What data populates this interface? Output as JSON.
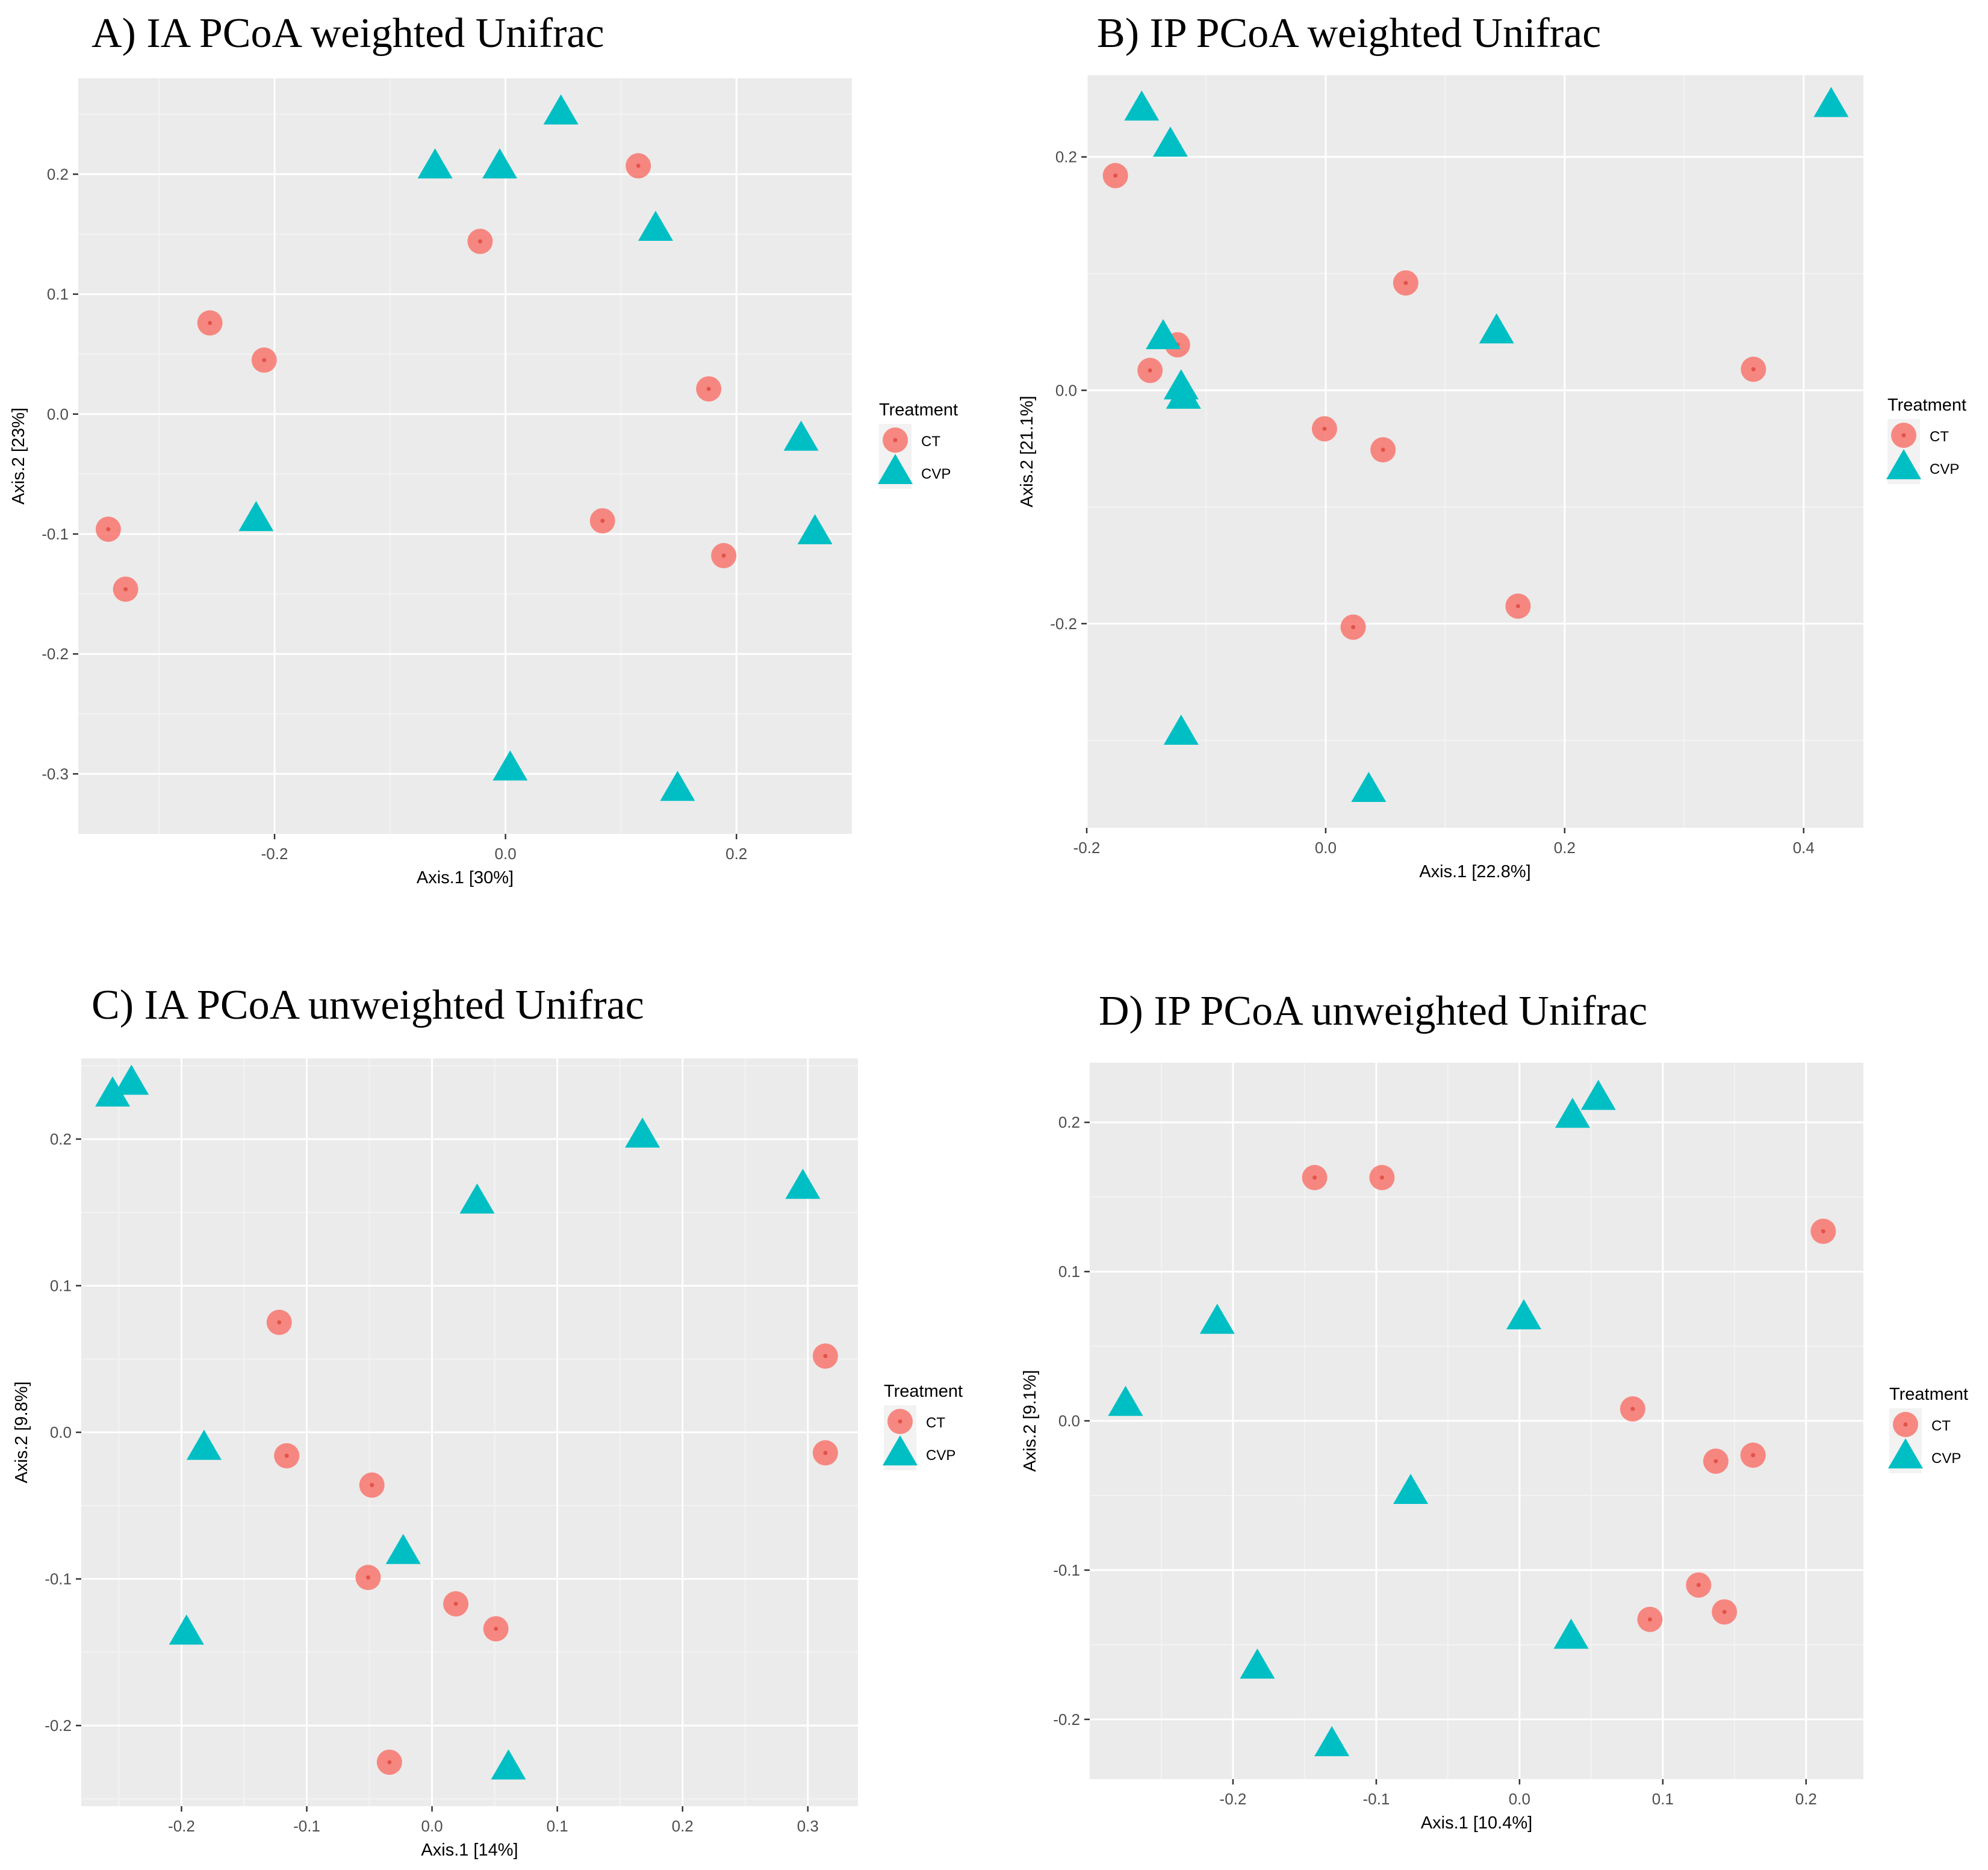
{
  "colors": {
    "panel_bg": "#ebebeb",
    "grid_major": "#ffffff",
    "grid_minor": "#f3f3f3",
    "ct": "#f8766d",
    "cvp": "#00bfc4",
    "ct_center": "#e2534a"
  },
  "chart_data": [
    {
      "type": "scatter",
      "title": "A) IA PCoA weighted Unifrac",
      "xlabel": "Axis.1   [30%]",
      "ylabel": "Axis.2   [23%]",
      "xlim": [
        -0.37,
        0.3
      ],
      "ylim": [
        -0.35,
        0.28
      ],
      "xticks": [
        -0.2,
        0.0,
        0.2
      ],
      "xtick_labels": [
        "-0.2",
        "0.0",
        "0.2"
      ],
      "yticks": [
        -0.3,
        -0.2,
        -0.1,
        0.0,
        0.1,
        0.2
      ],
      "ytick_labels": [
        "-0.3",
        "-0.2",
        "-0.1",
        "0.0",
        "0.1",
        "0.2"
      ],
      "legend": {
        "title": "Treatment",
        "labels": [
          "CT",
          "CVP"
        ],
        "position": "right"
      },
      "series": [
        {
          "name": "CT",
          "marker": "circle",
          "points": [
            [
              -0.344,
              -0.096
            ],
            [
              -0.329,
              -0.146
            ],
            [
              -0.256,
              0.076
            ],
            [
              -0.209,
              0.045
            ],
            [
              -0.022,
              0.144
            ],
            [
              0.084,
              -0.089
            ],
            [
              0.115,
              0.207
            ],
            [
              0.176,
              0.021
            ],
            [
              0.189,
              -0.118
            ]
          ]
        },
        {
          "name": "CVP",
          "marker": "triangle",
          "points": [
            [
              -0.216,
              -0.088
            ],
            [
              -0.061,
              0.206
            ],
            [
              -0.005,
              0.206
            ],
            [
              0.048,
              0.251
            ],
            [
              0.13,
              0.154
            ],
            [
              0.256,
              -0.021
            ],
            [
              0.268,
              -0.099
            ],
            [
              0.004,
              -0.296
            ],
            [
              0.149,
              -0.313
            ]
          ]
        }
      ]
    },
    {
      "type": "scatter",
      "title": "B) IP PCoA weighted Unifrac",
      "xlabel": "Axis.1   [22.8%]",
      "ylabel": "Axis.2   [21.1%]",
      "xlim": [
        -0.2,
        0.45
      ],
      "ylim": [
        -0.375,
        0.27
      ],
      "xticks": [
        -0.2,
        0.0,
        0.2,
        0.4
      ],
      "xtick_labels": [
        "-0.2",
        "0.0",
        "0.2",
        "0.4"
      ],
      "yticks": [
        -0.2,
        0.0,
        0.2
      ],
      "ytick_labels": [
        "-0.2",
        "0.0",
        "0.2"
      ],
      "legend": {
        "title": "Treatment",
        "labels": [
          "CT",
          "CVP"
        ],
        "position": "right"
      },
      "series": [
        {
          "name": "CT",
          "marker": "circle",
          "points": [
            [
              -0.176,
              0.184
            ],
            [
              -0.147,
              0.017
            ],
            [
              -0.124,
              0.039
            ],
            [
              -0.001,
              -0.033
            ],
            [
              0.067,
              0.092
            ],
            [
              0.048,
              -0.051
            ],
            [
              0.023,
              -0.203
            ],
            [
              0.161,
              -0.185
            ],
            [
              0.358,
              0.018
            ]
          ]
        },
        {
          "name": "CVP",
          "marker": "triangle",
          "points": [
            [
              -0.154,
              0.241
            ],
            [
              -0.13,
              0.21
            ],
            [
              -0.136,
              0.045
            ],
            [
              -0.121,
              0.002
            ],
            [
              -0.119,
              -0.006
            ],
            [
              0.143,
              0.05
            ],
            [
              -0.121,
              -0.294
            ],
            [
              0.036,
              -0.343
            ],
            [
              0.423,
              0.244
            ]
          ]
        }
      ]
    },
    {
      "type": "scatter",
      "title": "C) IA PCoA unweighted Unifrac",
      "xlabel": "Axis.1   [14%]",
      "ylabel": "Axis.2   [9.8%]",
      "xlim": [
        -0.28,
        0.34
      ],
      "ylim": [
        -0.255,
        0.255
      ],
      "xticks": [
        -0.2,
        -0.1,
        0.0,
        0.1,
        0.2,
        0.3
      ],
      "xtick_labels": [
        "-0.2",
        "-0.1",
        "0.0",
        "0.1",
        "0.2",
        "0.3"
      ],
      "yticks": [
        -0.2,
        -0.1,
        0.0,
        0.1,
        0.2
      ],
      "ytick_labels": [
        "-0.2",
        "-0.1",
        "0.0",
        "0.1",
        "0.2"
      ],
      "legend": {
        "title": "Treatment",
        "labels": [
          "CT",
          "CVP"
        ],
        "position": "right"
      },
      "series": [
        {
          "name": "CT",
          "marker": "circle",
          "points": [
            [
              -0.122,
              0.075
            ],
            [
              -0.116,
              -0.016
            ],
            [
              -0.048,
              -0.036
            ],
            [
              -0.051,
              -0.099
            ],
            [
              0.019,
              -0.117
            ],
            [
              0.051,
              -0.134
            ],
            [
              -0.034,
              -0.225
            ],
            [
              0.314,
              0.052
            ],
            [
              0.314,
              -0.014
            ]
          ]
        },
        {
          "name": "CVP",
          "marker": "triangle",
          "points": [
            [
              -0.255,
              0.23
            ],
            [
              -0.24,
              0.238
            ],
            [
              -0.182,
              -0.011
            ],
            [
              -0.196,
              -0.137
            ],
            [
              -0.023,
              -0.082
            ],
            [
              0.036,
              0.157
            ],
            [
              0.168,
              0.202
            ],
            [
              0.296,
              0.167
            ],
            [
              0.061,
              -0.229
            ]
          ]
        }
      ]
    },
    {
      "type": "scatter",
      "title": "D) IP PCoA unweighted Unifrac",
      "xlabel": "Axis.1   [10.4%]",
      "ylabel": "Axis.2   [9.1%]",
      "xlim": [
        -0.3,
        0.24
      ],
      "ylim": [
        -0.24,
        0.24
      ],
      "xticks": [
        -0.2,
        -0.1,
        0.0,
        0.1,
        0.2
      ],
      "xtick_labels": [
        "-0.2",
        "-0.1",
        "0.0",
        "0.1",
        "0.2"
      ],
      "yticks": [
        -0.2,
        -0.1,
        0.0,
        0.1,
        0.2
      ],
      "ytick_labels": [
        "-0.2",
        "-0.1",
        "0.0",
        "0.1",
        "0.2"
      ],
      "legend": {
        "title": "Treatment",
        "labels": [
          "CT",
          "CVP"
        ],
        "position": "right"
      },
      "series": [
        {
          "name": "CT",
          "marker": "circle",
          "points": [
            [
              -0.143,
              0.163
            ],
            [
              -0.096,
              0.163
            ],
            [
              0.079,
              0.008
            ],
            [
              0.137,
              -0.027
            ],
            [
              0.163,
              -0.023
            ],
            [
              0.212,
              0.127
            ],
            [
              0.125,
              -0.11
            ],
            [
              0.091,
              -0.133
            ],
            [
              0.143,
              -0.128
            ]
          ]
        },
        {
          "name": "CVP",
          "marker": "triangle",
          "points": [
            [
              -0.275,
              0.011
            ],
            [
              -0.211,
              0.066
            ],
            [
              -0.183,
              -0.165
            ],
            [
              -0.131,
              -0.217
            ],
            [
              -0.076,
              -0.048
            ],
            [
              0.003,
              0.069
            ],
            [
              0.037,
              0.204
            ],
            [
              0.055,
              0.216
            ],
            [
              0.036,
              -0.145
            ]
          ]
        }
      ]
    }
  ]
}
